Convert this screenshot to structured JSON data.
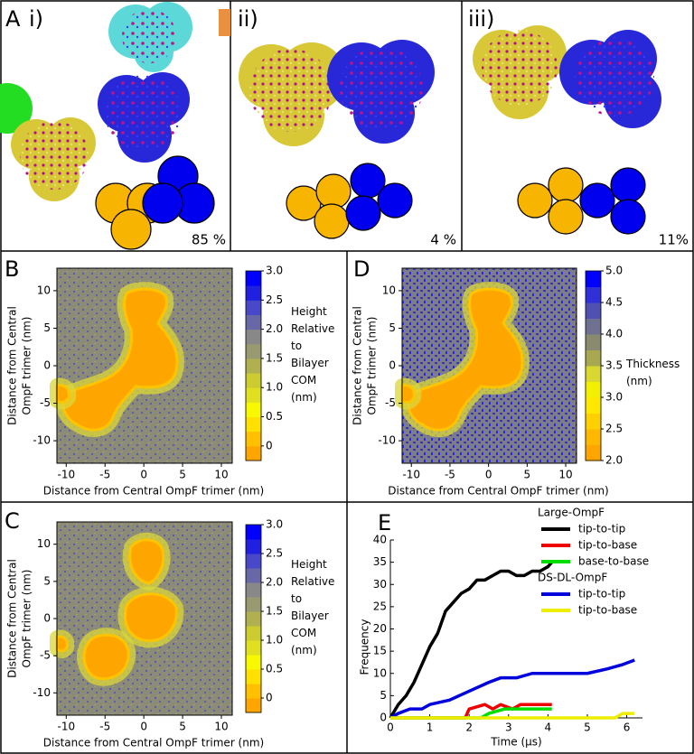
{
  "panel_a": {
    "letter": "A",
    "subpanels": [
      {
        "label": "i)",
        "percent": "85 %"
      },
      {
        "label": "ii)",
        "percent": "4 %"
      },
      {
        "label": "iii)",
        "percent": "11%"
      }
    ]
  },
  "chart_data": [
    {
      "type": "heatmap",
      "label": "B",
      "xlabel": "Distance from Central OmpF trimer (nm)",
      "ylabel": [
        "Distance from Central",
        "OmpF trimer (nm)"
      ],
      "xlim": [
        -11.2,
        11.4
      ],
      "ylim": [
        -13,
        13
      ],
      "xticks": [
        -10,
        -5,
        0,
        5,
        10
      ],
      "yticks": [
        -10,
        -5,
        0,
        5,
        10
      ],
      "colorbar": {
        "lim": [
          -0.25,
          3.0
        ],
        "ticks": [
          0,
          0.5,
          {
            "value": 1,
            "label": "1.0"
          },
          1.5,
          {
            "value": 2,
            "label": "2.0"
          },
          2.5,
          {
            "value": 3,
            "label": "3.0"
          }
        ],
        "colors": [
          "#ffa500",
          "#ffc000",
          "#ffe000",
          "#f8f800",
          "#e0e020",
          "#cccc30",
          "#b0b050",
          "#9a9a70",
          "#888888",
          "#6868a8",
          "#4848c8",
          "#2020e0",
          "#0000ff"
        ],
        "label": [
          "Height",
          "Relative",
          "to",
          "Bilayer",
          "COM",
          "(nm)"
        ]
      }
    },
    {
      "type": "heatmap",
      "label": "D",
      "xlabel": "Distance from Central OmpF trimer (nm)",
      "ylabel": [
        "Distance from Central",
        "OmpF trimer (nm)"
      ],
      "xlim": [
        -11.2,
        11.4
      ],
      "ylim": [
        -13,
        13
      ],
      "xticks": [
        -10,
        -5,
        0,
        5,
        10
      ],
      "yticks": [
        -10,
        -5,
        0,
        5,
        10
      ],
      "colorbar": {
        "lim": [
          2,
          5
        ],
        "ticks": [
          {
            "value": 2,
            "label": "2.0"
          },
          2.5,
          {
            "value": 3,
            "label": "3.0"
          },
          3.5,
          {
            "value": 4,
            "label": "4.0"
          },
          4.5,
          {
            "value": 5,
            "label": "5.0"
          }
        ],
        "colors": [
          "#ffa500",
          "#ffb800",
          "#ffd000",
          "#ffe800",
          "#f0f000",
          "#d8d830",
          "#a8a850",
          "#8a8a70",
          "#707090",
          "#5050b0",
          "#3030d8",
          "#0000ff"
        ],
        "label": [
          "Thickness",
          "(nm)"
        ]
      }
    },
    {
      "type": "heatmap",
      "label": "C",
      "xlabel": "Distance from Central OmpF trimer (nm)",
      "ylabel": [
        "Distance from Central",
        "OmpF trimer (nm)"
      ],
      "xlim": [
        -11.2,
        11.4
      ],
      "ylim": [
        -13,
        13
      ],
      "xticks": [
        -10,
        -5,
        0,
        5,
        10
      ],
      "yticks": [
        -10,
        -5,
        0,
        5,
        10
      ],
      "colorbar": {
        "lim": [
          -0.25,
          3.0
        ],
        "ticks": [
          0,
          0.5,
          {
            "value": 1,
            "label": "1.0"
          },
          1.5,
          {
            "value": 2,
            "label": "2.0"
          },
          2.5,
          {
            "value": 3,
            "label": "3.0"
          }
        ],
        "colors": [
          "#ffa500",
          "#ffc000",
          "#ffe000",
          "#f8f800",
          "#e0e020",
          "#cccc30",
          "#b0b050",
          "#9a9a70",
          "#888888",
          "#6868a8",
          "#4848c8",
          "#2020e0",
          "#0000ff"
        ],
        "label": [
          "Height",
          "Relative",
          "to",
          "Bilayer",
          "COM",
          "(nm)"
        ]
      }
    },
    {
      "type": "line",
      "label": "E",
      "xlabel": "Time (μs)",
      "ylabel": "Frequency",
      "xlim": [
        0,
        6.4
      ],
      "ylim": [
        0,
        40
      ],
      "xticks": [
        0,
        1,
        2,
        3,
        4,
        5,
        6
      ],
      "yticks": [
        0,
        5,
        10,
        15,
        20,
        25,
        30,
        35,
        40
      ],
      "legend": "upper right",
      "groups": [
        {
          "name": "Large-OmpF",
          "series": [
            {
              "name": "tip-to-tip",
              "color": "#000000",
              "x": [
                0,
                0.2,
                0.4,
                0.6,
                0.8,
                1.0,
                1.2,
                1.4,
                1.6,
                1.8,
                2.0,
                2.2,
                2.4,
                2.6,
                2.8,
                3.0,
                3.2,
                3.4,
                3.6,
                3.8,
                4.0,
                4.1
              ],
              "values": [
                0,
                3,
                5,
                8,
                12,
                16,
                19,
                24,
                26,
                28,
                29,
                31,
                31,
                32,
                33,
                33,
                32,
                32,
                33,
                33,
                34,
                35
              ]
            },
            {
              "name": "tip-to-base",
              "color": "#ee0000",
              "x": [
                0,
                1.9,
                2.0,
                2.4,
                2.6,
                2.8,
                3.1,
                3.3,
                3.6,
                4.1
              ],
              "values": [
                0,
                0,
                2,
                3,
                2,
                3,
                2,
                3,
                3,
                3
              ]
            },
            {
              "name": "base-to-base",
              "color": "#00dd00",
              "x": [
                0,
                2.3,
                2.5,
                2.9,
                3.5,
                4.1
              ],
              "values": [
                0,
                0,
                1,
                2,
                2,
                2
              ]
            }
          ]
        },
        {
          "name": "DS-DL-OmpF",
          "series": [
            {
              "name": "tip-to-tip",
              "color": "#0000dd",
              "x": [
                0,
                0.2,
                0.5,
                0.8,
                1.0,
                1.5,
                2.0,
                2.5,
                2.8,
                3.2,
                3.6,
                4.0,
                5.0,
                5.5,
                5.9,
                6.2
              ],
              "values": [
                0,
                1,
                2,
                2,
                3,
                4,
                6,
                8,
                9,
                9,
                10,
                10,
                10,
                11,
                12,
                13
              ]
            },
            {
              "name": "tip-to-base",
              "color": "#eeee00",
              "x": [
                0,
                5.7,
                5.9,
                6.2
              ],
              "values": [
                0,
                0,
                1,
                1
              ]
            }
          ]
        }
      ]
    }
  ]
}
